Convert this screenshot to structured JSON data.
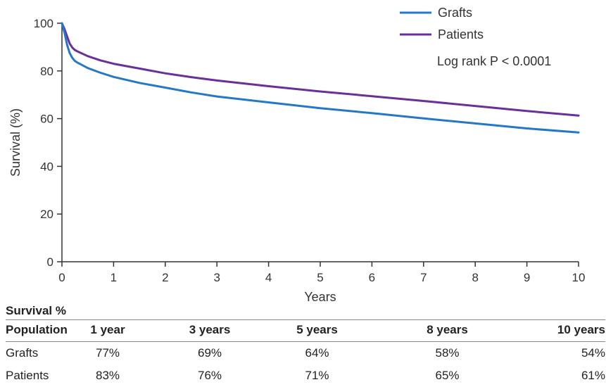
{
  "chart_data": {
    "type": "line",
    "xlabel": "Years",
    "ylabel": "Survival (%)",
    "xlim": [
      0,
      10
    ],
    "ylim": [
      0,
      100
    ],
    "xticks": [
      0,
      1,
      2,
      3,
      4,
      5,
      6,
      7,
      8,
      9,
      10
    ],
    "yticks": [
      0,
      20,
      40,
      60,
      80,
      100
    ],
    "grid": false,
    "legend": "top-right",
    "annotation": "Log rank P < 0.0001",
    "series": [
      {
        "name": "Grafts",
        "color": "#2478c8",
        "x": [
          0,
          0.05,
          0.1,
          0.15,
          0.2,
          0.25,
          0.3,
          0.5,
          0.75,
          1,
          1.5,
          2,
          2.5,
          3,
          4,
          5,
          6,
          7,
          8,
          9,
          10
        ],
        "y": [
          100,
          96,
          91,
          87.5,
          85.5,
          84.2,
          83.5,
          81.2,
          79.2,
          77.5,
          75,
          73,
          71,
          69.3,
          66.8,
          64.4,
          62.3,
          60.1,
          58,
          55.9,
          54.2
        ]
      },
      {
        "name": "Patients",
        "color": "#6a2f9a",
        "x": [
          0,
          0.05,
          0.1,
          0.15,
          0.2,
          0.25,
          0.3,
          0.5,
          0.75,
          1,
          1.5,
          2,
          2.5,
          3,
          4,
          5,
          6,
          7,
          8,
          9,
          10
        ],
        "y": [
          100,
          97.5,
          94.5,
          91.5,
          89.8,
          88.8,
          88.2,
          86.2,
          84.4,
          83,
          81,
          79,
          77.4,
          76,
          73.6,
          71.4,
          69.4,
          67.4,
          65.3,
          63.2,
          61.3
        ]
      }
    ]
  },
  "table": {
    "title": "Survival %",
    "headers": [
      "Population",
      "1 year",
      "3 years",
      "5 years",
      "8 years",
      "10 years"
    ],
    "rows": [
      [
        "Grafts",
        "77%",
        "69%",
        "64%",
        "58%",
        "54%"
      ],
      [
        "Patients",
        "83%",
        "76%",
        "71%",
        "65%",
        "61%"
      ]
    ]
  }
}
